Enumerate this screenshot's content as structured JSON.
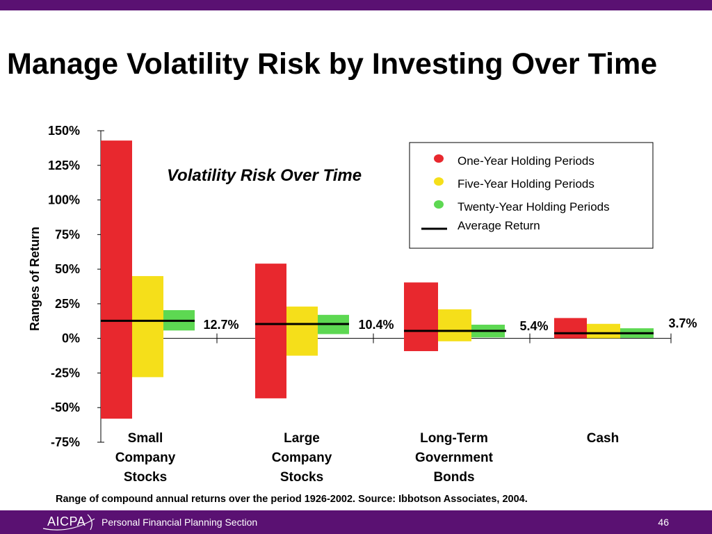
{
  "slide": {
    "title": "Manage Volatility Risk by Investing Over Time",
    "footnote": "Range of compound annual returns over the period 1926-2002.  Source:  Ibbotson Associates, 2004.",
    "footer": {
      "org": "AICPA",
      "section": "Personal Financial Planning Section",
      "page": "46"
    },
    "colors": {
      "brand": "#5a1172"
    }
  },
  "chart_data": {
    "type": "bar",
    "title": "Volatility Risk Over Time",
    "ylabel": "Ranges of Return",
    "ylim": [
      -75,
      150
    ],
    "yticks": [
      "150%",
      "125%",
      "100%",
      "75%",
      "50%",
      "25%",
      "0%",
      "-25%",
      "-50%",
      "-75%"
    ],
    "ytick_values": [
      150,
      125,
      100,
      75,
      50,
      25,
      0,
      -25,
      -50,
      -75
    ],
    "categories": [
      "Small Company Stocks",
      "Large Company Stocks",
      "Long-Term Government Bonds",
      "Cash"
    ],
    "category_lines": [
      [
        "Small",
        "Company",
        "Stocks"
      ],
      [
        "Large",
        "Company",
        "Stocks"
      ],
      [
        "Long-Term",
        "Government",
        "Bonds"
      ],
      [
        "Cash"
      ]
    ],
    "series": [
      {
        "name": "One-Year Holding Periods",
        "color": "#e8282e",
        "ranges": [
          [
            -58,
            142.9
          ],
          [
            -43.3,
            54
          ],
          [
            -9.2,
            40.4
          ],
          [
            0,
            14.7
          ]
        ]
      },
      {
        "name": "Five-Year Holding Periods",
        "color": "#f5df1a",
        "ranges": [
          [
            -28,
            45
          ],
          [
            -12.5,
            23
          ],
          [
            -2.1,
            21
          ],
          [
            0.1,
            10.5
          ]
        ]
      },
      {
        "name": "Twenty-Year Holding Periods",
        "color": "#5dd852",
        "ranges": [
          [
            5.7,
            20.4
          ],
          [
            3.1,
            17
          ],
          [
            0.7,
            9.9
          ],
          [
            0.4,
            7.3
          ]
        ]
      }
    ],
    "average_return": {
      "name": "Average Return",
      "values": [
        12.7,
        10.4,
        5.4,
        3.7
      ],
      "labels": [
        "12.7%",
        "10.4%",
        "5.4%",
        "3.7%"
      ]
    },
    "legend_position": "top-right",
    "grid": false
  }
}
